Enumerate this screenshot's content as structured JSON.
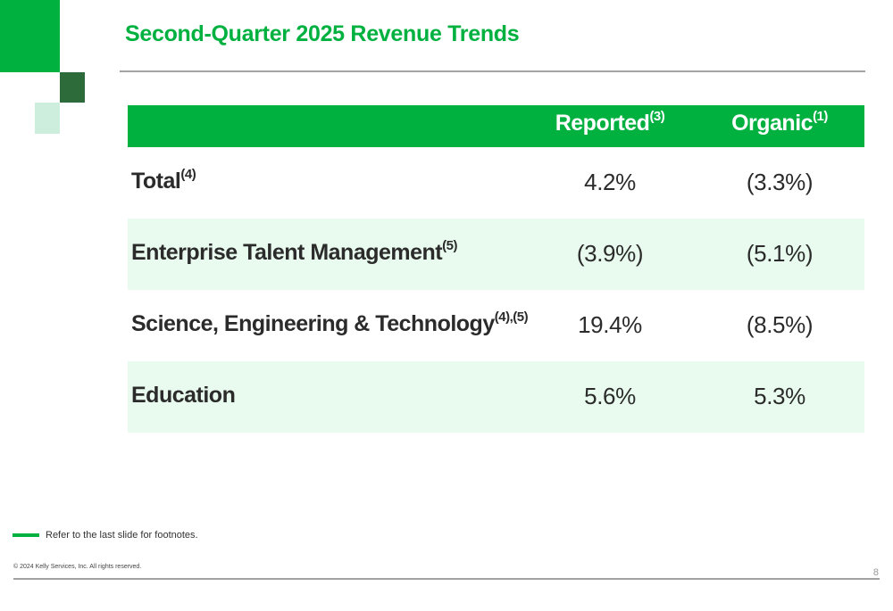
{
  "title": "Second-Quarter 2025 Revenue Trends",
  "table": {
    "headers": [
      {
        "label": "Reported",
        "sup": "(3)"
      },
      {
        "label": "Organic",
        "sup": "(1)"
      }
    ],
    "rows": [
      {
        "label": "Total",
        "sup": "(4)",
        "reported": "4.2%",
        "organic": "(3.3%)"
      },
      {
        "label": "Enterprise Talent Management",
        "sup": "(5)",
        "reported": "(3.9%)",
        "organic": "(5.1%)"
      },
      {
        "label": "Science, Engineering & Technology",
        "sup": "(4),(5)",
        "reported": "19.4%",
        "organic": "(8.5%)"
      },
      {
        "label": "Education",
        "sup": "",
        "reported": "5.6%",
        "organic": "5.3%"
      }
    ]
  },
  "footnote": "Refer to the last slide for footnotes.",
  "copyright": "© 2024 Kelly Services, Inc. All rights reserved.",
  "page_number": "8",
  "colors": {
    "accent": "#00b140",
    "dark_green": "#2e6b3a",
    "light_green": "#cdeedd",
    "row_shade": "#e8fbee"
  }
}
